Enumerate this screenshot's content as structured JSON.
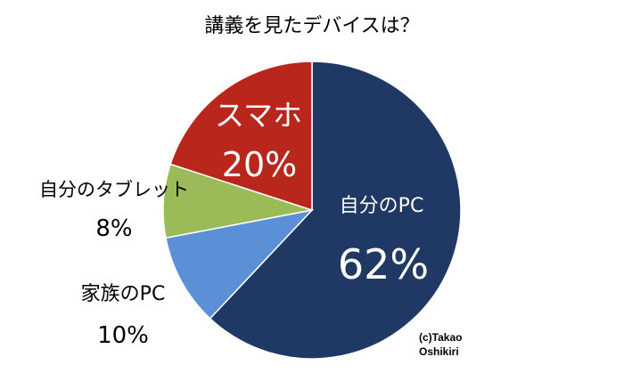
{
  "chart_data": {
    "type": "pie",
    "title": "講義を見たデバイスは？",
    "slices": [
      {
        "name": "自分のPC",
        "value": 62,
        "label": "62%",
        "color": "#1f3864",
        "label_inside": true
      },
      {
        "name": "家族のPC",
        "value": 10,
        "label": "10%",
        "color": "#5b8fd6",
        "label_inside": false
      },
      {
        "name": "自分のタブレット",
        "value": 8,
        "label": "8%",
        "color": "#9bbb59",
        "label_inside": false
      },
      {
        "name": "スマホ",
        "value": 20,
        "label": "20%",
        "color": "#b8261c",
        "label_inside": true
      }
    ],
    "start_angle_deg": 0,
    "direction": "clockwise"
  },
  "credit": {
    "line1": "(c)Takao",
    "line2": "Oshikiri"
  }
}
